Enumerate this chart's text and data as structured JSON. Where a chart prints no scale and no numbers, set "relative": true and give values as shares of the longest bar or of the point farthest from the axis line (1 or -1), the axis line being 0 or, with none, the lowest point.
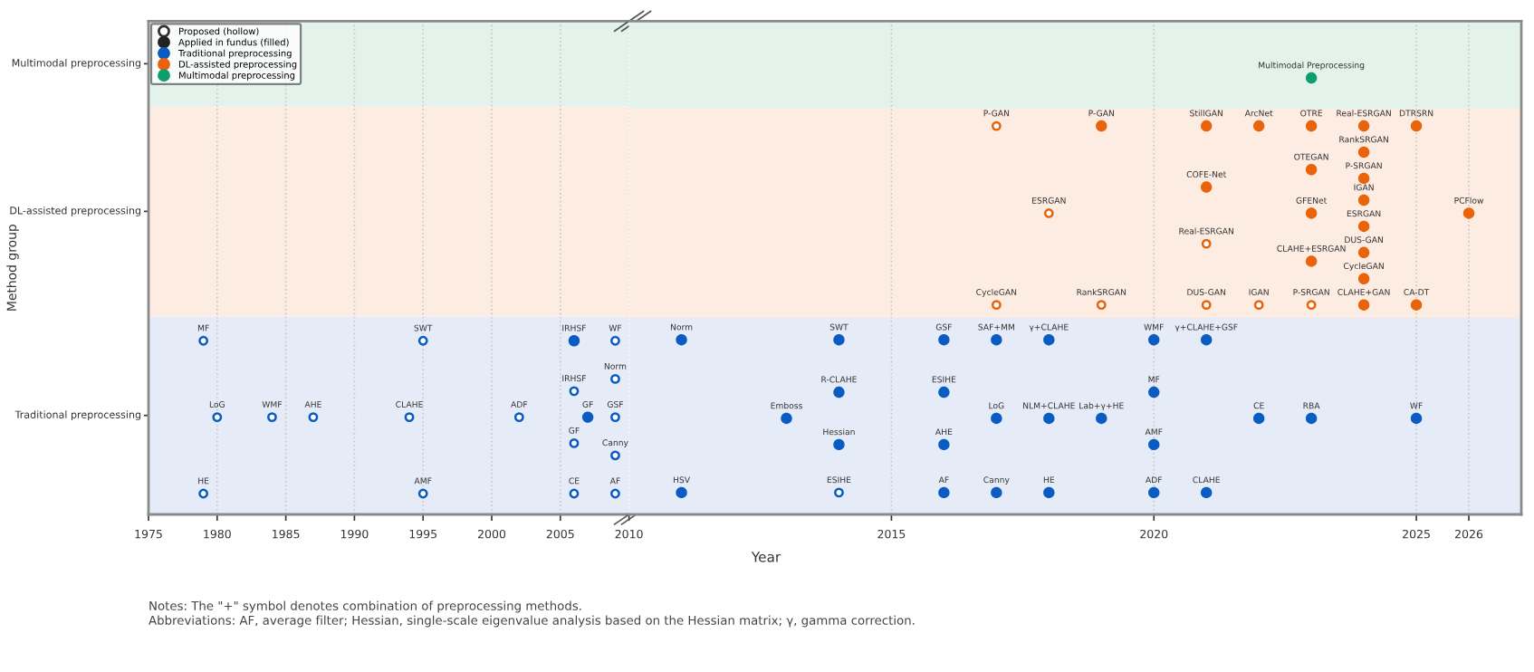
{
  "chart_data": [
    {
      "type": "scatter",
      "ylabel": "Method group",
      "relative": true,
      "xlim": [
        1975,
        2010
      ],
      "xticks": [
        1975,
        1980,
        1985,
        1990,
        1995,
        2000,
        2005,
        2010
      ],
      "grid": "x",
      "legend": "top left",
      "marker": "circle",
      "bands": [
        {
          "axis": "y",
          "from": 0,
          "to": 1.14,
          "color": "#e6ecf7",
          "label": "Traditional preprocessing"
        },
        {
          "axis": "y",
          "from": 1.14,
          "to": 2.35,
          "color": "#fdece2",
          "label": "DL-assisted preprocessing"
        },
        {
          "axis": "y",
          "from": 2.35,
          "to": 2.84,
          "color": "#e3f2ea",
          "label": "Multimodal preprocessing"
        }
      ],
      "series": [
        {
          "name": "Proposed (hollow)",
          "color": "#333333",
          "x": [
            1979,
            1995,
            2009,
            2009,
            2006,
            1980,
            1984,
            1987,
            1994,
            2002,
            2009,
            2006,
            2009,
            1979,
            1995,
            2006,
            2009
          ],
          "values": [
            1,
            1,
            1,
            0.78,
            0.71,
            0.56,
            0.56,
            0.56,
            0.56,
            0.56,
            0.56,
            0.41,
            0.34,
            0.12,
            0.12,
            0.12,
            0.12
          ],
          "colors": [
            "#0a5cc2",
            "#0a5cc2",
            "#0a5cc2",
            "#0a5cc2",
            "#0a5cc2",
            "#0a5cc2",
            "#0a5cc2",
            "#0a5cc2",
            "#0a5cc2",
            "#0a5cc2",
            "#0a5cc2",
            "#0a5cc2",
            "#0a5cc2",
            "#0a5cc2",
            "#0a5cc2",
            "#0a5cc2",
            "#0a5cc2"
          ]
        },
        {
          "name": "Applied in fundus (filled)",
          "color": "#222222"
        },
        {
          "name": "Traditional preprocessing",
          "color": "#0a5cc2",
          "x": [
            2006,
            2007
          ],
          "values": [
            1,
            0.56
          ]
        },
        {
          "name": "DL-assisted preprocessing",
          "color": "#e8630a"
        },
        {
          "name": "Multimodal preprocessing",
          "color": "#0f9d6e"
        }
      ],
      "annotations": [
        "Notes: The \"+\" symbol denotes combination of preprocessing methods.",
        "Abbreviations: AF, average filter; Hessian, single-scale eigenvalue analysis based on the Hessian matrix; γ, gamma correction.",
        {
          "text": "MF",
          "x": 1979,
          "y": 1
        },
        {
          "text": "SWT",
          "x": 1995,
          "y": 1
        },
        {
          "text": "IRHSF",
          "x": 2006,
          "y": 1
        },
        {
          "text": "WF",
          "x": 2009,
          "y": 1
        },
        {
          "text": "Norm",
          "x": 2009,
          "y": 0.78
        },
        {
          "text": "IRHSF",
          "x": 2006,
          "y": 0.71
        },
        {
          "text": "LoG",
          "x": 1980,
          "y": 0.56
        },
        {
          "text": "WMF",
          "x": 1984,
          "y": 0.56
        },
        {
          "text": "AHE",
          "x": 1987,
          "y": 0.56
        },
        {
          "text": "CLAHE",
          "x": 1994,
          "y": 0.56
        },
        {
          "text": "ADF",
          "x": 2002,
          "y": 0.56
        },
        {
          "text": "GF",
          "x": 2007,
          "y": 0.56
        },
        {
          "text": "GSF",
          "x": 2009,
          "y": 0.56
        },
        {
          "text": "GF",
          "x": 2006,
          "y": 0.41
        },
        {
          "text": "Canny",
          "x": 2009,
          "y": 0.34
        },
        {
          "text": "HE",
          "x": 1979,
          "y": 0.12
        },
        {
          "text": "AMF",
          "x": 1995,
          "y": 0.12
        },
        {
          "text": "CE",
          "x": 2006,
          "y": 0.12
        },
        {
          "text": "AF",
          "x": 2009,
          "y": 0.12
        }
      ]
    },
    {
      "type": "scatter",
      "xlabel": "Year",
      "relative": true,
      "xlim": [
        2010,
        2027
      ],
      "xticks": [
        2015,
        2020,
        2025,
        2026
      ],
      "tick_labels": "x",
      "grid": "x",
      "marker": "circle",
      "bands": [
        {
          "axis": "y",
          "from": 0,
          "to": 0.45,
          "color": "#e6ecf7"
        },
        {
          "axis": "y",
          "from": 0.45,
          "to": 0.93,
          "color": "#fdece2"
        },
        {
          "axis": "y",
          "from": 0.93,
          "to": 1.13,
          "color": "#e3f2ea"
        }
      ],
      "series": [
        {
          "x": [
            2014,
            2017,
            2018,
            2021,
            2017,
            2019,
            2021,
            2022,
            2023
          ],
          "values": [
            0.05,
            0.89,
            0.69,
            0.62,
            0.48,
            0.48,
            0.48,
            0.48,
            0.48
          ],
          "colors": [
            "#0a5cc2",
            "#e8630a",
            "#e8630a",
            "#e8630a",
            "#e8630a",
            "#e8630a",
            "#e8630a",
            "#e8630a",
            "#e8630a"
          ]
        },
        {
          "color": "#0a5cc2",
          "x": [
            2011,
            2014,
            2016,
            2017,
            2018,
            2020,
            2021,
            2014,
            2016,
            2020,
            2013,
            2017,
            2018,
            2019,
            2022,
            2023,
            2025,
            2014,
            2016,
            2020,
            2011,
            2016,
            2017,
            2018,
            2020,
            2021
          ],
          "values": [
            0.4,
            0.4,
            0.4,
            0.4,
            0.4,
            0.4,
            0.4,
            0.28,
            0.28,
            0.28,
            0.22,
            0.22,
            0.22,
            0.22,
            0.22,
            0.22,
            0.22,
            0.16,
            0.16,
            0.16,
            0.05,
            0.05,
            0.05,
            0.05,
            0.05,
            0.05
          ]
        },
        {
          "color": "#e8630a",
          "x": [
            2019,
            2021,
            2022,
            2023,
            2024,
            2025,
            2024,
            2023,
            2024,
            2021,
            2024,
            2023,
            2026,
            2024,
            2024,
            2023,
            2024,
            2024,
            2025
          ],
          "values": [
            0.89,
            0.89,
            0.89,
            0.89,
            0.89,
            0.89,
            0.83,
            0.79,
            0.77,
            0.75,
            0.72,
            0.69,
            0.69,
            0.66,
            0.6,
            0.58,
            0.54,
            0.48,
            0.48
          ]
        },
        {
          "color": "#0f9d6e",
          "x": [
            2023
          ],
          "values": [
            1
          ]
        }
      ],
      "annotations": [
        {
          "text": "Multimodal Preprocessing",
          "x": 2023,
          "y": 1
        },
        {
          "text": "P-GAN",
          "x": 2017,
          "y": 0.89
        },
        {
          "text": "P-GAN",
          "x": 2019,
          "y": 0.89
        },
        {
          "text": "StillGAN",
          "x": 2021,
          "y": 0.89
        },
        {
          "text": "ArcNet",
          "x": 2022,
          "y": 0.89
        },
        {
          "text": "OTRE",
          "x": 2023,
          "y": 0.89
        },
        {
          "text": "Real-ESRGAN",
          "x": 2024,
          "y": 0.89
        },
        {
          "text": "DTRSRN",
          "x": 2025,
          "y": 0.89
        },
        {
          "text": "RankSRGAN",
          "x": 2024,
          "y": 0.83
        },
        {
          "text": "OTEGAN",
          "x": 2023,
          "y": 0.79
        },
        {
          "text": "P-SRGAN",
          "x": 2024,
          "y": 0.77
        },
        {
          "text": "COFE-Net",
          "x": 2021,
          "y": 0.75
        },
        {
          "text": "IGAN",
          "x": 2024,
          "y": 0.72
        },
        {
          "text": "ESRGAN",
          "x": 2018,
          "y": 0.69
        },
        {
          "text": "GFENet",
          "x": 2023,
          "y": 0.69
        },
        {
          "text": "PCFlow",
          "x": 2026,
          "y": 0.69
        },
        {
          "text": "ESRGAN",
          "x": 2024,
          "y": 0.66
        },
        {
          "text": "Real-ESRGAN",
          "x": 2021,
          "y": 0.62
        },
        {
          "text": "DUS-GAN",
          "x": 2024,
          "y": 0.6
        },
        {
          "text": "CLAHE+ESRGAN",
          "x": 2023,
          "y": 0.58
        },
        {
          "text": "CycleGAN",
          "x": 2024,
          "y": 0.54
        },
        {
          "text": "CycleGAN",
          "x": 2017,
          "y": 0.48
        },
        {
          "text": "RankSRGAN",
          "x": 2019,
          "y": 0.48
        },
        {
          "text": "DUS-GAN",
          "x": 2021,
          "y": 0.48
        },
        {
          "text": "IGAN",
          "x": 2022,
          "y": 0.48
        },
        {
          "text": "P-SRGAN",
          "x": 2023,
          "y": 0.48
        },
        {
          "text": "CLAHE+GAN",
          "x": 2024,
          "y": 0.48
        },
        {
          "text": "CA-DT",
          "x": 2025,
          "y": 0.48
        },
        {
          "text": "Norm",
          "x": 2011,
          "y": 0.4
        },
        {
          "text": "SWT",
          "x": 2014,
          "y": 0.4
        },
        {
          "text": "GSF",
          "x": 2016,
          "y": 0.4
        },
        {
          "text": "SAF+MM",
          "x": 2017,
          "y": 0.4
        },
        {
          "text": "γ+CLAHE",
          "x": 2018,
          "y": 0.4
        },
        {
          "text": "WMF",
          "x": 2020,
          "y": 0.4
        },
        {
          "text": "γ+CLAHE+GSF",
          "x": 2021,
          "y": 0.4
        },
        {
          "text": "R-CLAHE",
          "x": 2014,
          "y": 0.28
        },
        {
          "text": "ESIHE",
          "x": 2016,
          "y": 0.28
        },
        {
          "text": "MF",
          "x": 2020,
          "y": 0.28
        },
        {
          "text": "Emboss",
          "x": 2013,
          "y": 0.22
        },
        {
          "text": "LoG",
          "x": 2017,
          "y": 0.22
        },
        {
          "text": "NLM+CLAHE",
          "x": 2018,
          "y": 0.22
        },
        {
          "text": "Lab+γ+HE",
          "x": 2019,
          "y": 0.22
        },
        {
          "text": "CE",
          "x": 2022,
          "y": 0.22
        },
        {
          "text": "RBA",
          "x": 2023,
          "y": 0.22
        },
        {
          "text": "WF",
          "x": 2025,
          "y": 0.22
        },
        {
          "text": "Hessian",
          "x": 2014,
          "y": 0.16
        },
        {
          "text": "AHE",
          "x": 2016,
          "y": 0.16
        },
        {
          "text": "AMF",
          "x": 2020,
          "y": 0.16
        },
        {
          "text": "HSV",
          "x": 2011,
          "y": 0.05
        },
        {
          "text": "ESIHE",
          "x": 2014,
          "y": 0.05
        },
        {
          "text": "AF",
          "x": 2016,
          "y": 0.05
        },
        {
          "text": "Canny",
          "x": 2017,
          "y": 0.05
        },
        {
          "text": "HE",
          "x": 2018,
          "y": 0.05
        },
        {
          "text": "ADF",
          "x": 2020,
          "y": 0.05
        },
        {
          "text": "CLAHE",
          "x": 2021,
          "y": 0.05
        }
      ]
    }
  ]
}
